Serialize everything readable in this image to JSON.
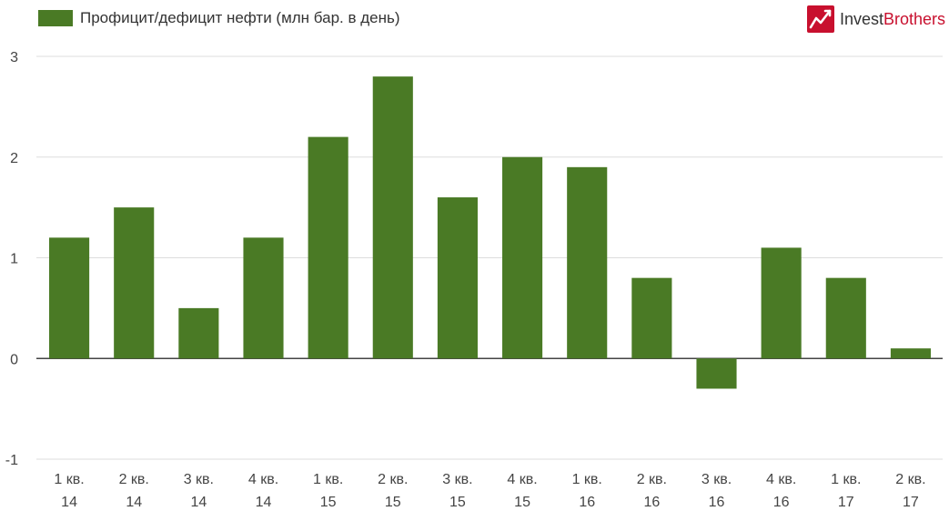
{
  "brand": {
    "name_part1": "Invest",
    "name_part2": "Brothers",
    "accent_color": "#c8102e",
    "logo_icon": "chart-trend-logo-icon"
  },
  "chart_data": {
    "type": "bar",
    "series": [
      {
        "name": "Профицит/дефицит нефти (млн бар. в день)",
        "color": "#4a7a25",
        "values": [
          1.2,
          1.5,
          0.5,
          1.2,
          2.2,
          2.8,
          1.6,
          2.0,
          1.9,
          0.8,
          -0.3,
          1.1,
          0.8,
          0.1
        ]
      }
    ],
    "categories": [
      [
        "1 кв.",
        "14"
      ],
      [
        "2 кв.",
        "14"
      ],
      [
        "3 кв.",
        "14"
      ],
      [
        "4 кв.",
        "14"
      ],
      [
        "1 кв.",
        "15"
      ],
      [
        "2 кв.",
        "15"
      ],
      [
        "3 кв.",
        "15"
      ],
      [
        "4 кв.",
        "15"
      ],
      [
        "1 кв.",
        "16"
      ],
      [
        "2 кв.",
        "16"
      ],
      [
        "3 кв.",
        "16"
      ],
      [
        "4 кв.",
        "16"
      ],
      [
        "1 кв.",
        "17"
      ],
      [
        "2 кв.",
        "17"
      ]
    ],
    "ylim": [
      -1,
      3
    ],
    "yticks": [
      "-1",
      "0",
      "1",
      "2",
      "3"
    ],
    "grid": true,
    "legend_position": "top-left"
  }
}
